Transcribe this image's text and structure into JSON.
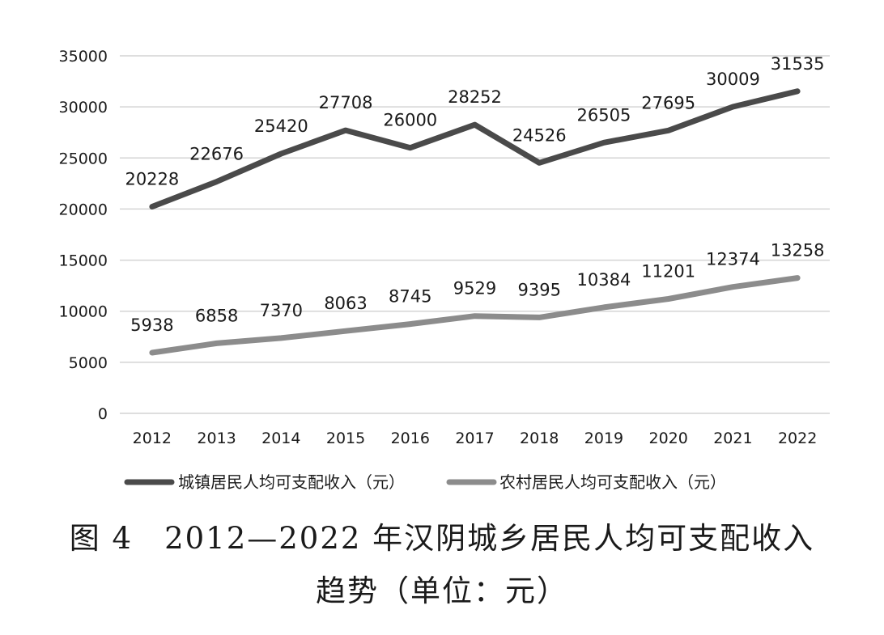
{
  "chart_data": {
    "type": "line",
    "categories": [
      "2012",
      "2013",
      "2014",
      "2015",
      "2016",
      "2017",
      "2018",
      "2019",
      "2020",
      "2021",
      "2022"
    ],
    "series": [
      {
        "name": "城镇居民人均可支配收入（元）",
        "color": "#4a4a4a",
        "values": [
          20228,
          22676,
          25420,
          27708,
          26000,
          28252,
          24526,
          26505,
          27695,
          30009,
          31535
        ]
      },
      {
        "name": "农村居民人均可支配收入（元）",
        "color": "#8c8c8c",
        "values": [
          5938,
          6858,
          7370,
          8063,
          8745,
          9529,
          9395,
          10384,
          11201,
          12374,
          13258
        ]
      }
    ],
    "ylim": [
      0,
      35000
    ],
    "yticks": [
      0,
      5000,
      10000,
      15000,
      20000,
      25000,
      30000,
      35000
    ],
    "grid": true,
    "legend": "bottom"
  },
  "caption": {
    "line1": "图 4　2012—2022 年汉阴城乡居民人均可支配收入",
    "line2": "趋势（单位：元）"
  }
}
